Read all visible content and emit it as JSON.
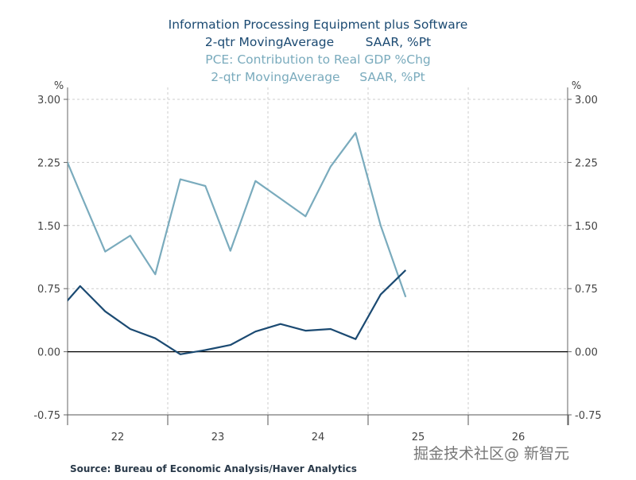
{
  "chart_data": {
    "type": "line",
    "title_lines": [
      {
        "text": "Information Processing Equipment plus Software",
        "series": 0
      },
      {
        "text": "2-qtr MovingAverage        SAAR, %Pt",
        "series": 0
      },
      {
        "text": "PCE: Contribution to Real GDP %Chg",
        "series": 1
      },
      {
        "text": "2-qtr MovingAverage     SAAR, %Pt",
        "series": 1
      }
    ],
    "y_unit_left": "%",
    "y_unit_right": "%",
    "ylim": [
      -0.75,
      3.0
    ],
    "yticks": [
      "3.00",
      "2.25",
      "1.50",
      "0.75",
      "0.00",
      "-0.75"
    ],
    "ytick_values": [
      3.0,
      2.25,
      1.5,
      0.75,
      0.0,
      -0.75
    ],
    "xticks": [
      "22",
      "23",
      "24",
      "25",
      "26"
    ],
    "xlim": [
      "2021Q4.5",
      "2026Q4"
    ],
    "grid": true,
    "x": [
      "2021Q4",
      "2022Q1",
      "2022Q2",
      "2022Q3",
      "2022Q4",
      "2023Q1",
      "2023Q2",
      "2023Q3",
      "2023Q4",
      "2024Q1",
      "2024Q2",
      "2024Q3",
      "2024Q4",
      "2025Q1",
      "2025Q2"
    ],
    "series": [
      {
        "name": "Information Processing Equipment plus Software, 2-qtr MovingAverage SAAR, %Pt",
        "color": "#1b4a72",
        "values": [
          0.44,
          0.78,
          0.48,
          0.27,
          0.16,
          -0.03,
          0.02,
          0.08,
          0.24,
          0.33,
          0.25,
          0.27,
          0.15,
          0.68,
          0.97
        ]
      },
      {
        "name": "PCE: Contribution to Real GDP %Chg, 2-qtr MovingAverage SAAR, %Pt",
        "color": "#7aabbd",
        "values": [
          2.6,
          1.89,
          1.19,
          1.38,
          0.92,
          2.05,
          1.97,
          1.2,
          2.03,
          1.82,
          1.61,
          2.2,
          2.6,
          1.5,
          0.65
        ]
      }
    ],
    "source": "Source:  Bureau of Economic Analysis/Haver Analytics"
  },
  "watermark": "掘金技术社区@ 新智元"
}
